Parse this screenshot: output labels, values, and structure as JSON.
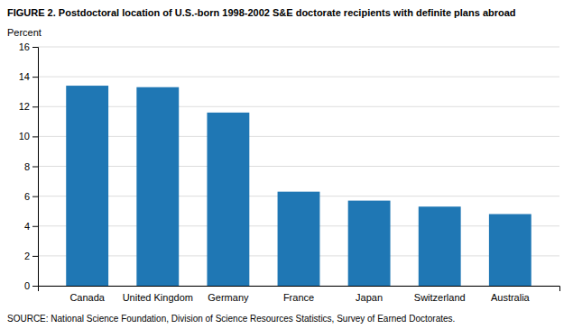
{
  "chart_data": {
    "type": "bar",
    "title": "FIGURE 2. Postdoctoral location of U.S.-born 1998-2002 S&E doctorate recipients with definite plans abroad",
    "ylabel": "Percent",
    "source": "SOURCE: National Science Foundation, Division of Science Resources Statistics, Survey of Earned Doctorates.",
    "categories": [
      "Canada",
      "United Kingdom",
      "Germany",
      "France",
      "Japan",
      "Switzerland",
      "Australia"
    ],
    "values": [
      13.4,
      13.3,
      11.6,
      6.3,
      5.7,
      5.3,
      4.8
    ],
    "ylim": [
      0,
      16
    ],
    "yticks": [
      0,
      2,
      4,
      6,
      8,
      10,
      12,
      14,
      16
    ],
    "grid": true
  }
}
